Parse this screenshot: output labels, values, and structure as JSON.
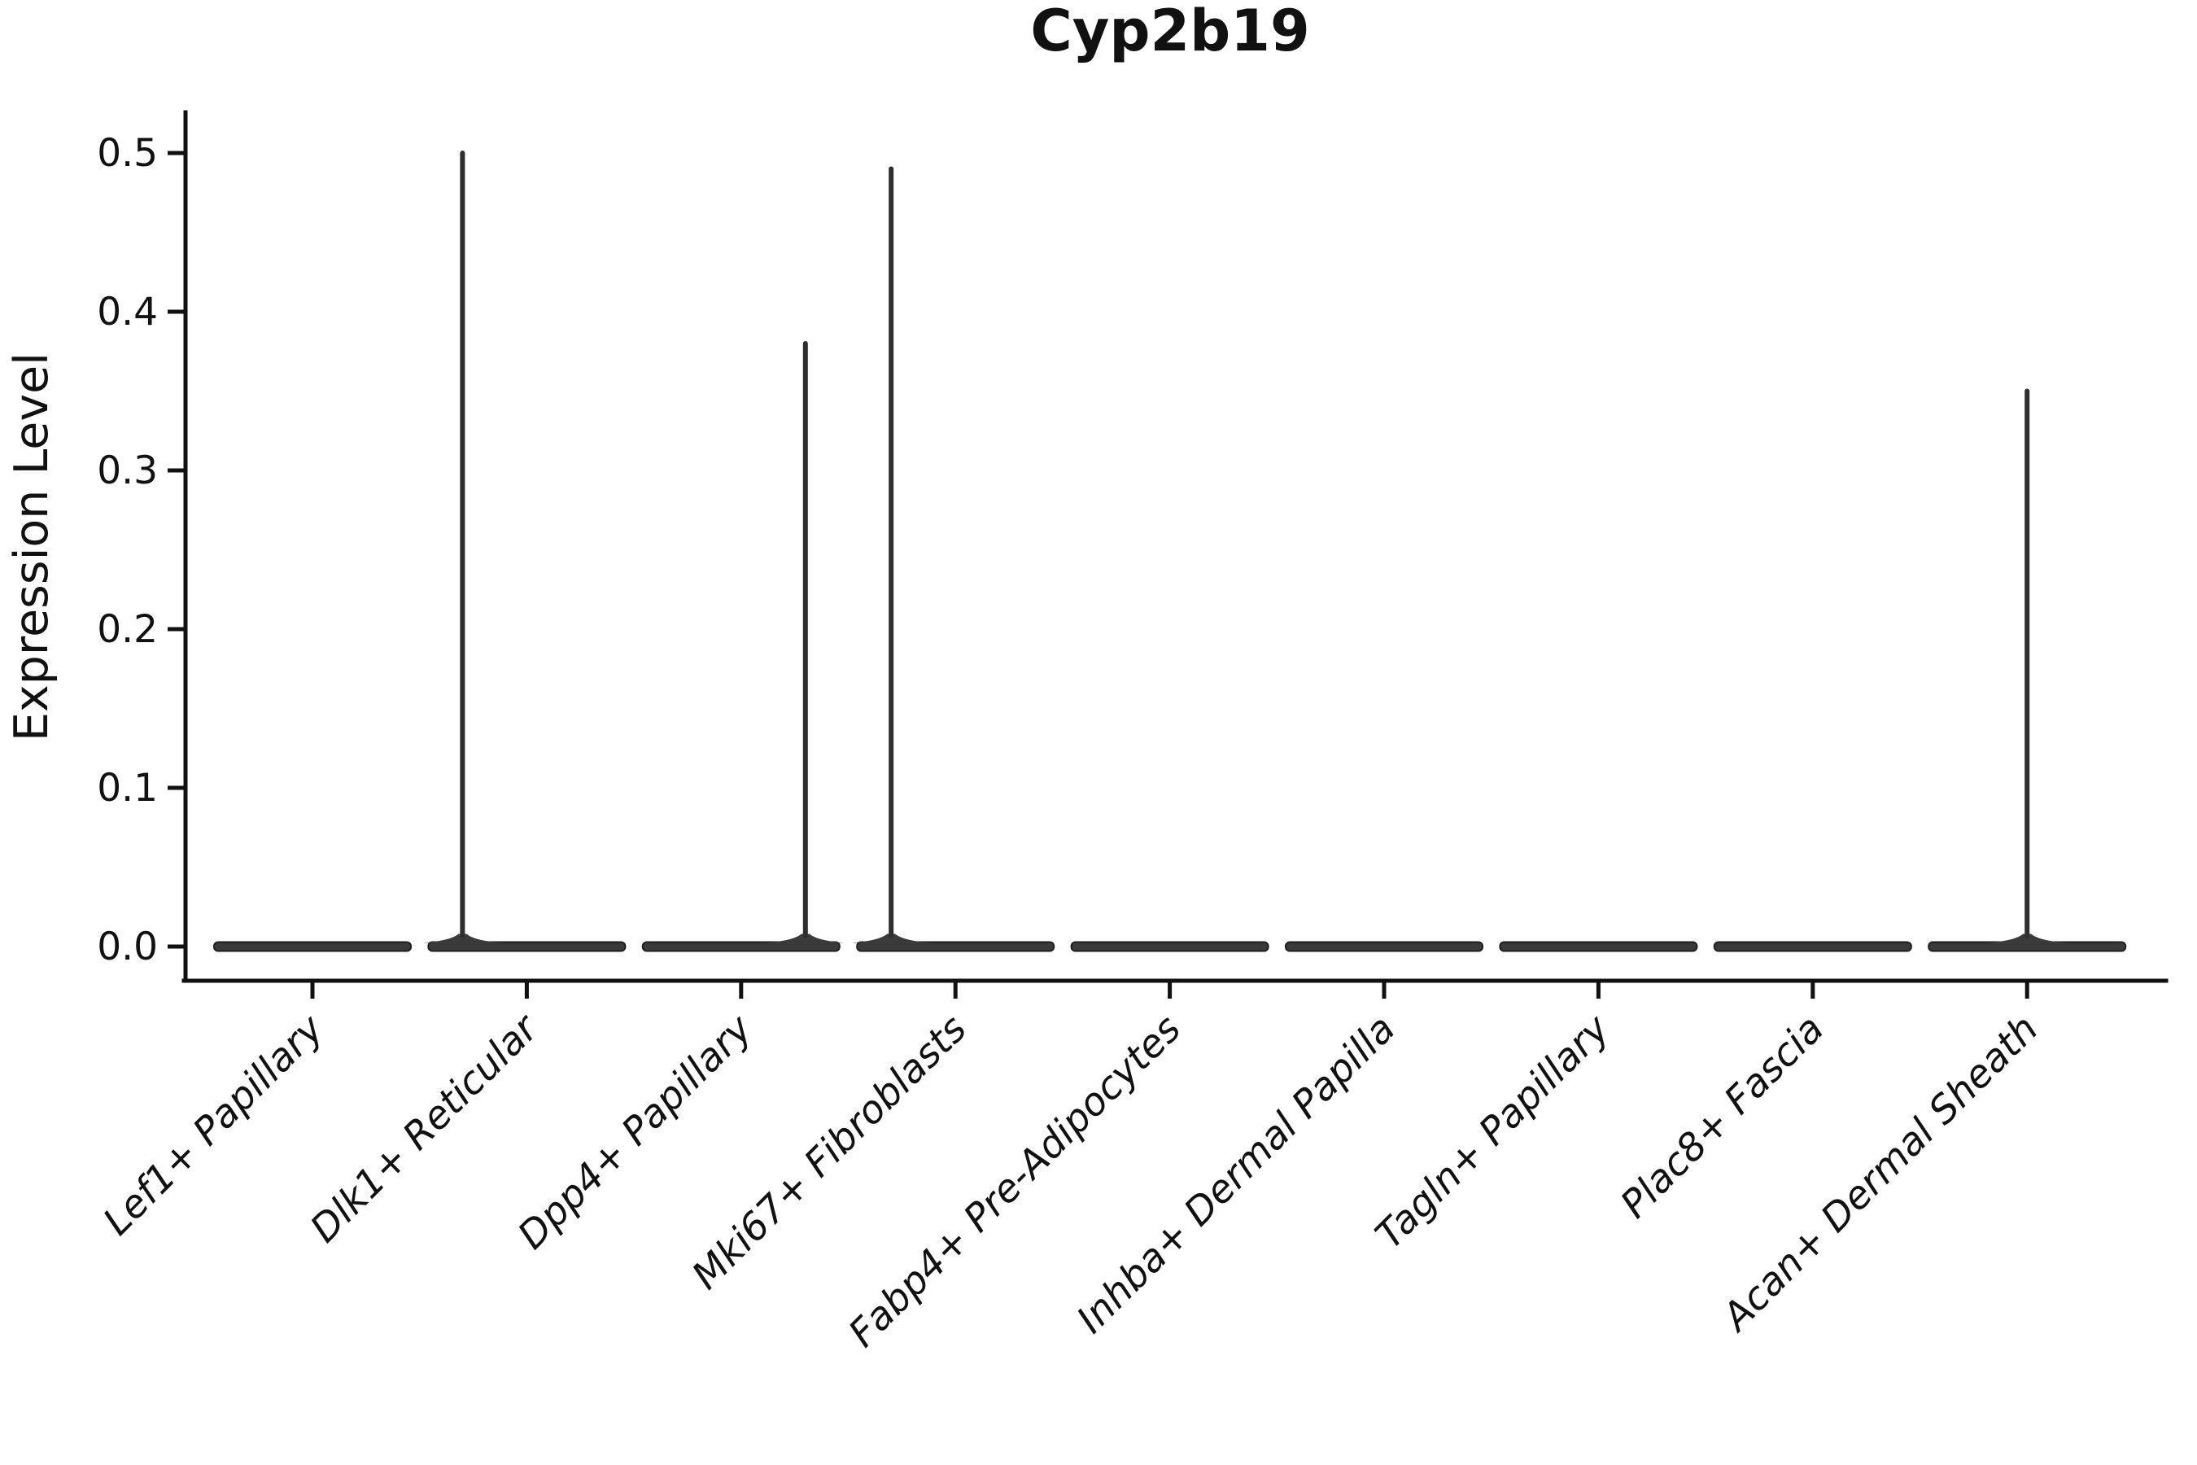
{
  "title": "Cyp2b19",
  "chart_data": {
    "type": "violin",
    "title": "Cyp2b19",
    "xlabel": "",
    "ylabel": "Expression Level",
    "yticks": [
      0.0,
      0.1,
      0.2,
      0.3,
      0.4,
      0.5
    ],
    "ytick_labels": [
      "0.0",
      "0.1",
      "0.2",
      "0.3",
      "0.4",
      "0.5"
    ],
    "ylim": [
      0.0,
      0.535
    ],
    "grid": false,
    "legend": null,
    "x_tick_label_rotation_deg": 45,
    "categories": [
      "Lef1+ Papillary",
      "Dlk1+ Reticular",
      "Dpp4+ Papillary",
      "Mki67+ Fibroblasts",
      "Fabp4+ Pre-Adipocytes",
      "Inhba+ Dermal Papilla",
      "Tagln+ Papillary",
      "Plac8+ Fascia",
      "Acan+ Dermal Sheath"
    ],
    "violins": [
      {
        "category": "Lef1+ Papillary",
        "bulk_level": 0.0,
        "max_expression": 0.0,
        "spike_offset_units": 0.0
      },
      {
        "category": "Dlk1+ Reticular",
        "bulk_level": 0.0,
        "max_expression": 0.5,
        "spike_offset_units": -0.3
      },
      {
        "category": "Dpp4+ Papillary",
        "bulk_level": 0.0,
        "max_expression": 0.38,
        "spike_offset_units": 0.3
      },
      {
        "category": "Mki67+ Fibroblasts",
        "bulk_level": 0.0,
        "max_expression": 0.49,
        "spike_offset_units": -0.3
      },
      {
        "category": "Fabp4+ Pre-Adipocytes",
        "bulk_level": 0.0,
        "max_expression": 0.0,
        "spike_offset_units": 0.0
      },
      {
        "category": "Inhba+ Dermal Papilla",
        "bulk_level": 0.0,
        "max_expression": 0.0,
        "spike_offset_units": 0.0
      },
      {
        "category": "Tagln+ Papillary",
        "bulk_level": 0.0,
        "max_expression": 0.0,
        "spike_offset_units": 0.0
      },
      {
        "category": "Plac8+ Fascia",
        "bulk_level": 0.0,
        "max_expression": 0.0,
        "spike_offset_units": 0.0
      },
      {
        "category": "Acan+ Dermal Sheath",
        "bulk_level": 0.0,
        "max_expression": 0.35,
        "spike_offset_units": 0.0
      }
    ]
  }
}
